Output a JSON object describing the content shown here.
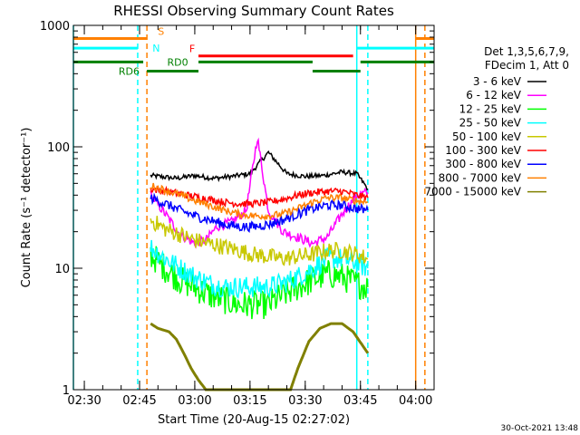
{
  "chart_data": {
    "type": "line",
    "title": "RHESSI Observing Summary Count Rates",
    "xlabel": "Start Time (20-Aug-15 02:27:02)",
    "ylabel": "Count Rate (s⁻¹ detector⁻¹)",
    "y_scale": "log",
    "ylim": [
      1,
      1000
    ],
    "x_range": [
      "02:27:02",
      "04:05:00"
    ],
    "grid": false,
    "yticks": [
      {
        "value": 1,
        "label": "1"
      },
      {
        "value": 10,
        "label": "10"
      },
      {
        "value": 100,
        "label": "100"
      },
      {
        "value": 1000,
        "label": "1000"
      }
    ],
    "xticks": [
      {
        "value": "02:30",
        "label": "02:30"
      },
      {
        "value": "02:45",
        "label": "02:45"
      },
      {
        "value": "03:00",
        "label": "03:00"
      },
      {
        "value": "03:15",
        "label": "03:15"
      },
      {
        "value": "03:30",
        "label": "03:30"
      },
      {
        "value": "03:45",
        "label": "03:45"
      },
      {
        "value": "04:00",
        "label": "04:00"
      }
    ],
    "legend_header": [
      "Det 1,3,5,6,7,9,",
      "FDecim 1, Att 0"
    ],
    "legend_position": "right",
    "series": [
      {
        "name": "3 - 6 keV",
        "color": "#000000",
        "x": [
          "02:48",
          "02:55",
          "03:00",
          "03:05",
          "03:10",
          "03:15",
          "03:20",
          "03:25",
          "03:30",
          "03:35",
          "03:40",
          "03:44",
          "03:47"
        ],
        "y": [
          58,
          55,
          58,
          55,
          57,
          60,
          90,
          60,
          57,
          58,
          62,
          60,
          45
        ]
      },
      {
        "name": "6 - 12 keV",
        "color": "#ff00ff",
        "x": [
          "02:48",
          "02:52",
          "02:56",
          "03:00",
          "03:03",
          "03:06",
          "03:10",
          "03:14",
          "03:17",
          "03:20",
          "03:24",
          "03:28",
          "03:32",
          "03:36",
          "03:40",
          "03:44",
          "03:47"
        ],
        "y": [
          40,
          28,
          19,
          16,
          17,
          22,
          24,
          30,
          120,
          30,
          20,
          18,
          16,
          18,
          28,
          40,
          42
        ]
      },
      {
        "name": "12 - 25 keV",
        "color": "#00ff00",
        "x": [
          "02:48",
          "02:52",
          "02:56",
          "03:00",
          "03:04",
          "03:08",
          "03:12",
          "03:16",
          "03:20",
          "03:24",
          "03:28",
          "03:32",
          "03:36",
          "03:40",
          "03:44",
          "03:47"
        ],
        "y": [
          13,
          10,
          8,
          7,
          6,
          5.5,
          5,
          5,
          5,
          6,
          7,
          8,
          9,
          8.5,
          7.5,
          7
        ]
      },
      {
        "name": "25 - 50 keV",
        "color": "#00ffff",
        "x": [
          "02:48",
          "02:52",
          "02:56",
          "03:00",
          "03:04",
          "03:08",
          "03:12",
          "03:16",
          "03:20",
          "03:24",
          "03:28",
          "03:32",
          "03:36",
          "03:40",
          "03:44",
          "03:47"
        ],
        "y": [
          15,
          12,
          10,
          8.5,
          7.5,
          7,
          7,
          7,
          7,
          7.5,
          8.5,
          10,
          12,
          12,
          11,
          10
        ]
      },
      {
        "name": "50 - 100 keV",
        "color": "#c8c800",
        "x": [
          "02:48",
          "02:52",
          "02:56",
          "03:00",
          "03:04",
          "03:08",
          "03:12",
          "03:16",
          "03:20",
          "03:24",
          "03:28",
          "03:32",
          "03:36",
          "03:40",
          "03:44",
          "03:47"
        ],
        "y": [
          25,
          21,
          19,
          17,
          16,
          15,
          14,
          13,
          12.5,
          12,
          12.5,
          13,
          14,
          14,
          13,
          12
        ]
      },
      {
        "name": "100 - 300 keV",
        "color": "#ff0000",
        "x": [
          "02:48",
          "02:52",
          "02:56",
          "03:00",
          "03:04",
          "03:08",
          "03:12",
          "03:16",
          "03:20",
          "03:24",
          "03:28",
          "03:32",
          "03:36",
          "03:40",
          "03:44",
          "03:47"
        ],
        "y": [
          45,
          43,
          41,
          39,
          37,
          35,
          34,
          34,
          35,
          37,
          40,
          42,
          43,
          43,
          40,
          38
        ]
      },
      {
        "name": "300 - 800 keV",
        "color": "#0000ff",
        "x": [
          "02:48",
          "02:52",
          "02:56",
          "03:00",
          "03:04",
          "03:08",
          "03:12",
          "03:16",
          "03:20",
          "03:24",
          "03:28",
          "03:32",
          "03:36",
          "03:40",
          "03:44",
          "03:47"
        ],
        "y": [
          38,
          34,
          30,
          27,
          25,
          23,
          22,
          22,
          23,
          25,
          28,
          31,
          33,
          33,
          31,
          30
        ]
      },
      {
        "name": "800 - 7000 keV",
        "color": "#ff8000",
        "x": [
          "02:48",
          "02:52",
          "02:56",
          "03:00",
          "03:04",
          "03:08",
          "03:12",
          "03:16",
          "03:20",
          "03:24",
          "03:28",
          "03:32",
          "03:36",
          "03:40",
          "03:44",
          "03:47"
        ],
        "y": [
          48,
          44,
          40,
          36,
          33,
          30,
          28,
          27,
          27,
          28,
          31,
          35,
          38,
          38,
          36,
          35
        ]
      },
      {
        "name": "7000 - 15000 keV",
        "color": "#808000",
        "x": [
          "02:48",
          "02:50",
          "02:53",
          "02:55",
          "02:57",
          "02:59",
          "03:01",
          "03:03",
          "03:26",
          "03:28",
          "03:31",
          "03:34",
          "03:37",
          "03:40",
          "03:43",
          "03:47"
        ],
        "y": [
          3.5,
          3.2,
          3,
          2.6,
          2,
          1.5,
          1.2,
          1,
          1,
          1.5,
          2.5,
          3.2,
          3.5,
          3.5,
          3,
          2
        ]
      }
    ],
    "flags": [
      {
        "name": "S",
        "color": "#ff8000",
        "value": 780,
        "segments": [
          [
            "02:27:02",
            "02:47:00"
          ],
          [
            "04:00:00",
            "04:05:00"
          ]
        ]
      },
      {
        "name": "N",
        "color": "#00ffff",
        "value": 650,
        "segments": [
          [
            "02:27:02",
            "02:44:30"
          ],
          [
            "03:44:00",
            "04:05:00"
          ]
        ]
      },
      {
        "name": "F",
        "color": "#ff0000",
        "value": 560,
        "segments": [
          [
            "03:01:00",
            "03:43:00"
          ]
        ]
      },
      {
        "name": "RD0",
        "color": "#008000",
        "value": 500,
        "segments": [
          [
            "02:27:02",
            "02:46:00"
          ],
          [
            "03:01:00",
            "03:32:00"
          ],
          [
            "03:45:00",
            "04:05:00"
          ]
        ]
      },
      {
        "name": "RD6",
        "color": "#008000",
        "value": 420,
        "segments": [
          [
            "02:47:00",
            "03:01:00"
          ],
          [
            "03:32:00",
            "03:45:00"
          ]
        ]
      }
    ],
    "vlines": [
      {
        "x": "02:27:02",
        "color": "#00ffff",
        "style": "solid"
      },
      {
        "x": "02:44:30",
        "color": "#00ffff",
        "style": "dashed"
      },
      {
        "x": "02:47:00",
        "color": "#ff8000",
        "style": "dashed"
      },
      {
        "x": "03:44:00",
        "color": "#00ffff",
        "style": "solid"
      },
      {
        "x": "03:47:00",
        "color": "#00ffff",
        "style": "dashed"
      },
      {
        "x": "04:00:00",
        "color": "#ff8000",
        "style": "solid"
      },
      {
        "x": "04:02:30",
        "color": "#ff8000",
        "style": "dashed"
      }
    ],
    "timestamp": "30-Oct-2021 13:48"
  }
}
